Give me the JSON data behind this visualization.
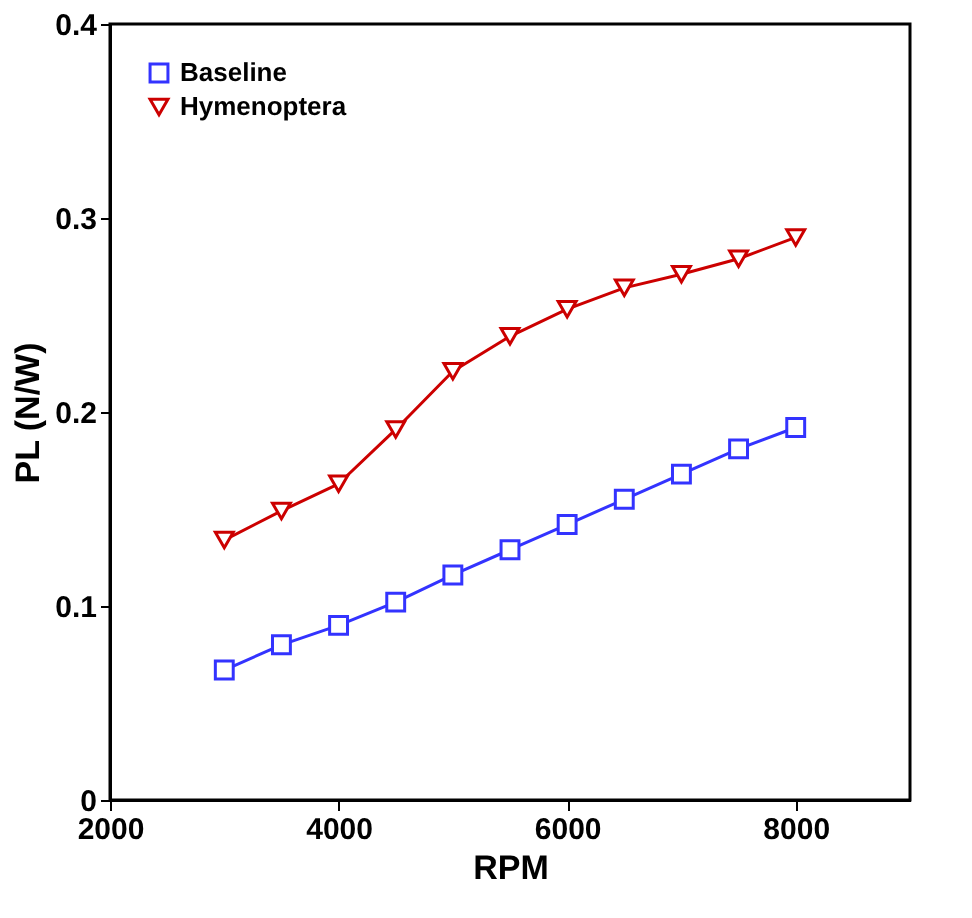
{
  "chart_data": {
    "type": "line",
    "xlabel": "RPM",
    "ylabel": "PL (N/W)",
    "x": [
      3000,
      3500,
      4000,
      4500,
      5000,
      5500,
      6000,
      6500,
      7000,
      7500,
      8000
    ],
    "series": [
      {
        "name": "Baseline",
        "color": "#3333ff",
        "marker": "square",
        "values": [
          0.067,
          0.08,
          0.09,
          0.102,
          0.116,
          0.129,
          0.142,
          0.155,
          0.168,
          0.181,
          0.192
        ]
      },
      {
        "name": "Hymenoptera",
        "color": "#cc0000",
        "marker": "triangle",
        "values": [
          0.134,
          0.149,
          0.163,
          0.191,
          0.221,
          0.239,
          0.253,
          0.264,
          0.271,
          0.279,
          0.29
        ]
      }
    ],
    "xlim": [
      2000,
      9000
    ],
    "xticks": [
      2000,
      4000,
      6000,
      8000
    ],
    "ylim": [
      0,
      0.4
    ],
    "yticks": [
      {
        "value": 0,
        "label": "0"
      },
      0.1,
      0.2,
      0.3,
      0.4
    ],
    "grid": false,
    "legend": "top left",
    "line_style": "solid"
  }
}
